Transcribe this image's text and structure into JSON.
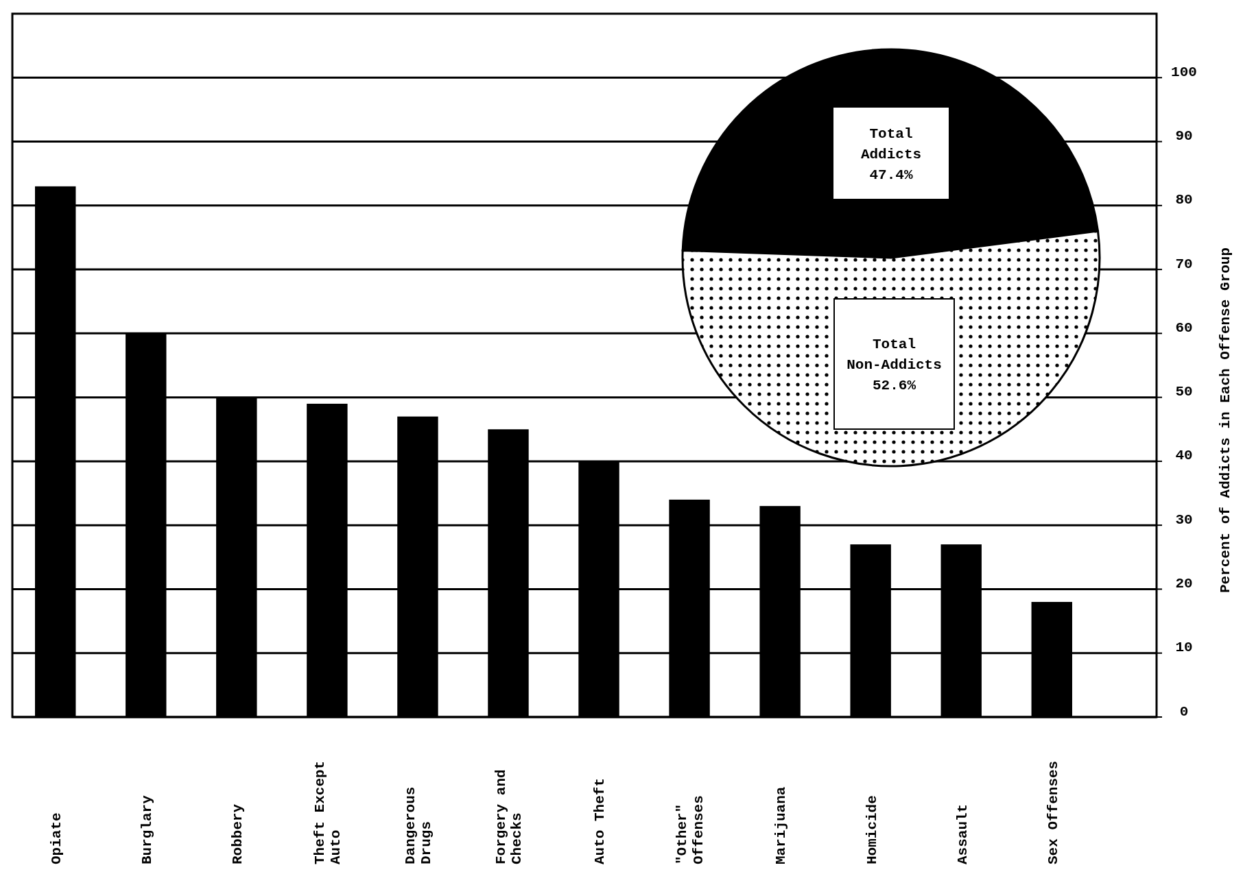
{
  "chart_data": [
    {
      "type": "bar",
      "ylabel": "Percent of Addicts in Each Offense Group",
      "categories": [
        "Opiate",
        "Burglary",
        "Robbery",
        "Theft Except\nAuto",
        "Dangerous\nDrugs",
        "Forgery and\nChecks",
        "Auto Theft",
        "\"Other\"\nOffenses",
        "Marijuana",
        "Homicide",
        "Assault",
        "Sex Offenses"
      ],
      "values": [
        83,
        60,
        50,
        49,
        47,
        45,
        40,
        34,
        33,
        27,
        27,
        18
      ],
      "color": "#000000",
      "ylim": [
        0,
        110
      ],
      "yticks": [
        0,
        10,
        20,
        30,
        40,
        50,
        60,
        70,
        80,
        90,
        100
      ],
      "grid": "y"
    },
    {
      "type": "pie",
      "categories": [
        "Total Addicts",
        "Total Non-Addicts"
      ],
      "values": [
        47.4,
        52.6
      ],
      "colors": [
        "#000000",
        "#ffffff"
      ],
      "value_labels": [
        "47.4%",
        "52.6%"
      ]
    }
  ]
}
